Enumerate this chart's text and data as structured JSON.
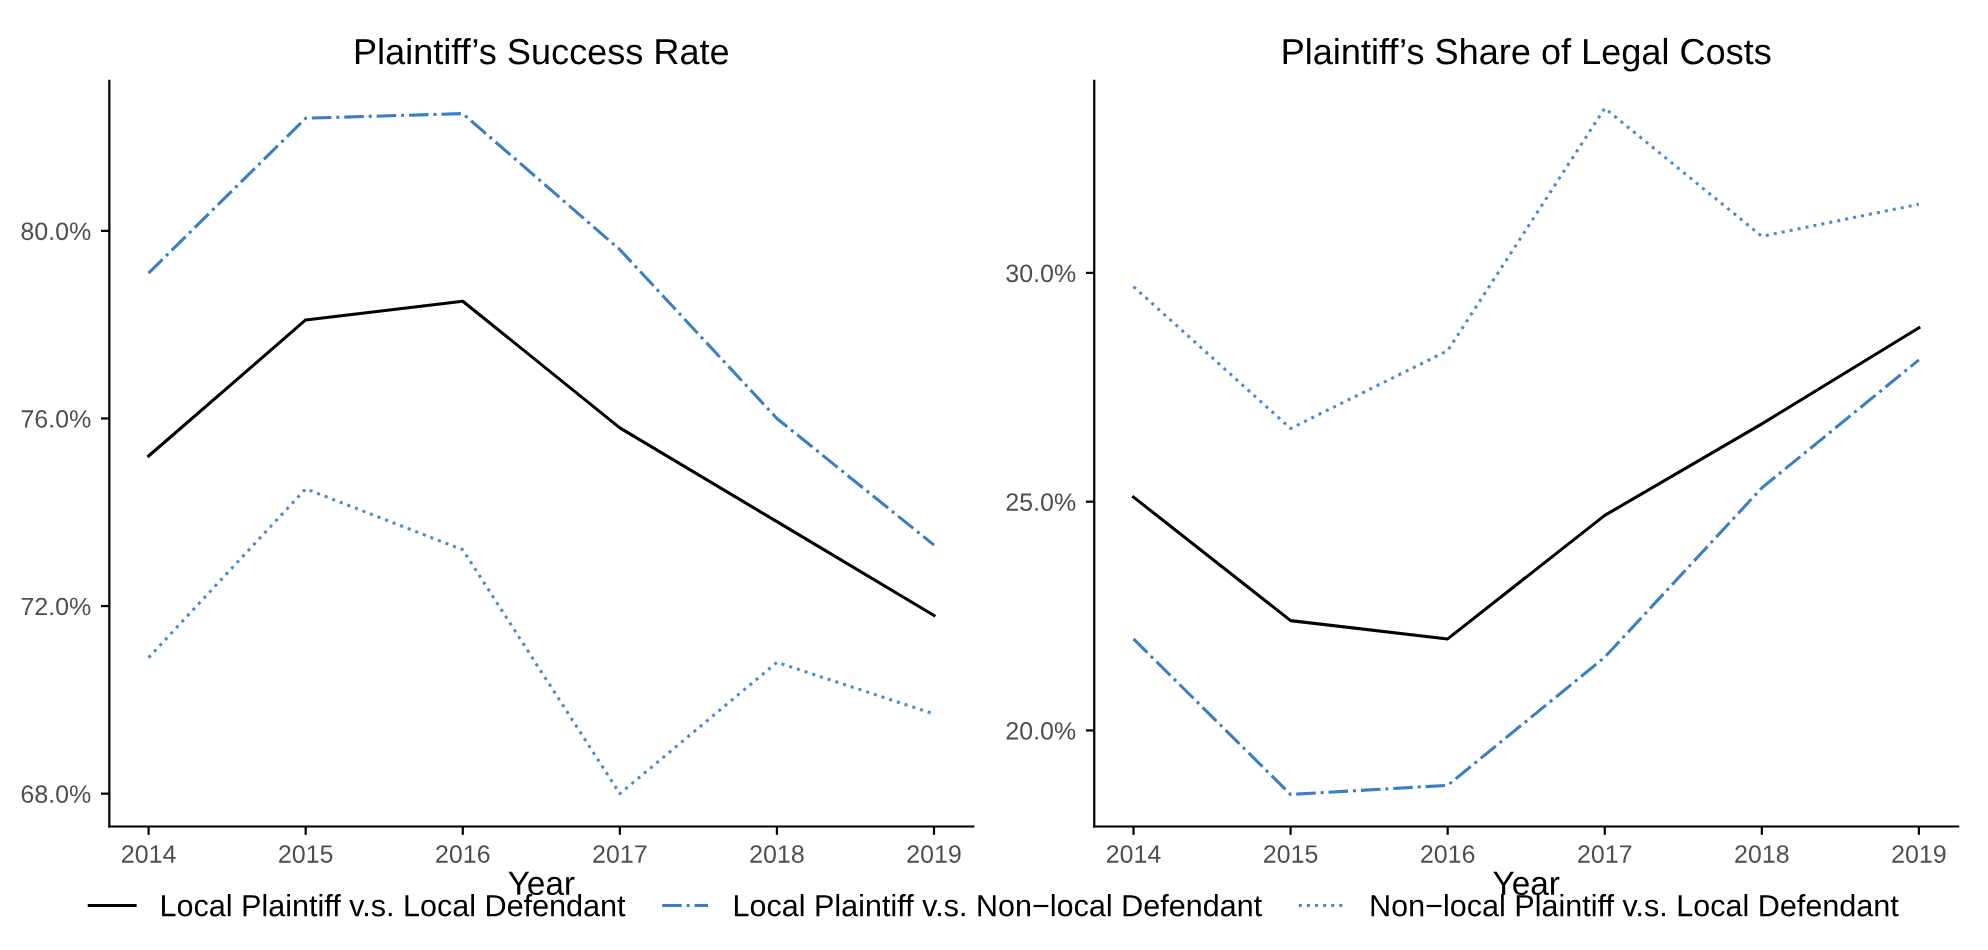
{
  "chart_data": [
    {
      "type": "line",
      "title": "Plaintiff’s Success Rate",
      "xlabel": "Year",
      "x": [
        2014,
        2015,
        2016,
        2017,
        2018,
        2019
      ],
      "xlim": [
        2013.75,
        2019.25
      ],
      "xticks": [
        2014,
        2015,
        2016,
        2017,
        2018,
        2019
      ],
      "ylim": [
        67.3,
        83.2
      ],
      "yticks": [
        {
          "value": 68,
          "label": "68.0%"
        },
        {
          "value": 72,
          "label": "72.0%"
        },
        {
          "value": 76,
          "label": "76.0%"
        },
        {
          "value": 80,
          "label": "80.0%"
        }
      ],
      "grid": false,
      "legend": "bottom",
      "series": [
        {
          "name": "Local Plaintiff v.s. Local Defendant",
          "color": "#000000",
          "line_style": "solid",
          "values": [
            75.2,
            78.1,
            78.5,
            75.8,
            73.8,
            71.8
          ]
        },
        {
          "name": "Local Plaintiff v.s. Non−local Defendant",
          "color": "#3a7fc4",
          "line_style": "dashdot",
          "values": [
            79.1,
            82.4,
            82.5,
            79.6,
            76.0,
            73.3
          ]
        },
        {
          "name": "Non−local Plaintiff v.s. Local Defendant",
          "color": "#4a8bd0",
          "line_style": "dotted",
          "values": [
            70.9,
            74.5,
            73.2,
            68.0,
            70.8,
            69.7
          ]
        }
      ]
    },
    {
      "type": "line",
      "title": "Plaintiff’s Share of Legal Costs",
      "xlabel": "Year",
      "x": [
        2014,
        2015,
        2016,
        2017,
        2018,
        2019
      ],
      "xlim": [
        2013.75,
        2019.25
      ],
      "xticks": [
        2014,
        2015,
        2016,
        2017,
        2018,
        2019
      ],
      "ylim": [
        17.9,
        34.2
      ],
      "yticks": [
        {
          "value": 20,
          "label": "20.0%"
        },
        {
          "value": 25,
          "label": "25.0%"
        },
        {
          "value": 30,
          "label": "30.0%"
        }
      ],
      "grid": false,
      "series": [
        {
          "color": "#000000",
          "line_style": "solid",
          "values": [
            25.1,
            22.4,
            22.0,
            24.7,
            26.7,
            28.8
          ]
        },
        {
          "color": "#3a7fc4",
          "line_style": "dashdot",
          "values": [
            22.0,
            18.6,
            18.8,
            21.6,
            25.3,
            28.1
          ]
        },
        {
          "color": "#4a8bd0",
          "line_style": "dotted",
          "values": [
            29.7,
            26.6,
            28.3,
            33.6,
            30.8,
            31.5
          ]
        }
      ]
    }
  ]
}
